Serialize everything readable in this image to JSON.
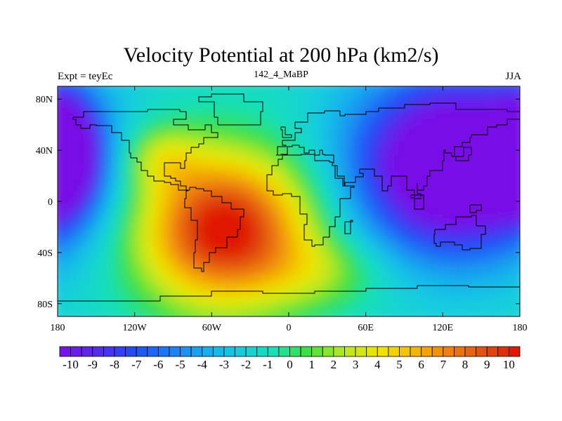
{
  "header": {
    "title": "Velocity Potential at 200 hPa (km2/s)",
    "left": "Expt = teyEc",
    "center": "142_4_MaBP",
    "right": "JJA"
  },
  "map": {
    "projection": "cylindrical-equidistant",
    "lon_range": [
      -180,
      180
    ],
    "lat_range": [
      -90,
      90
    ],
    "x_ticks": [
      {
        "value": -180,
        "label": "180"
      },
      {
        "value": -120,
        "label": "120W"
      },
      {
        "value": -60,
        "label": "60W"
      },
      {
        "value": 0,
        "label": "0"
      },
      {
        "value": 60,
        "label": "60E"
      },
      {
        "value": 120,
        "label": "120E"
      },
      {
        "value": 180,
        "label": "180"
      }
    ],
    "y_ticks": [
      {
        "value": 80,
        "label": "80N"
      },
      {
        "value": 40,
        "label": "40N"
      },
      {
        "value": 0,
        "label": "0"
      },
      {
        "value": -40,
        "label": "40S"
      },
      {
        "value": -80,
        "label": "80S"
      }
    ]
  },
  "colorbar": {
    "min": -10.5,
    "max": 10.5,
    "step": 0.5,
    "labels": [
      "-10",
      "-9",
      "-8",
      "-7",
      "-6",
      "-5",
      "-4",
      "-3",
      "-2",
      "-1",
      "0",
      "1",
      "2",
      "3",
      "4",
      "5",
      "6",
      "7",
      "8",
      "9",
      "10"
    ],
    "label_values": [
      -10,
      -9,
      -8,
      -7,
      -6,
      -5,
      -4,
      -3,
      -2,
      -1,
      0,
      1,
      2,
      3,
      4,
      5,
      6,
      7,
      8,
      9,
      10
    ]
  },
  "colors": {
    "stops": [
      "#7a10e6",
      "#5a28f0",
      "#2448f5",
      "#1c78f5",
      "#18a8f0",
      "#12cce0",
      "#14e0b8",
      "#3fe040",
      "#b8e820",
      "#f0e600",
      "#f4b800",
      "#f08010",
      "#e05010",
      "#e01000"
    ]
  }
}
